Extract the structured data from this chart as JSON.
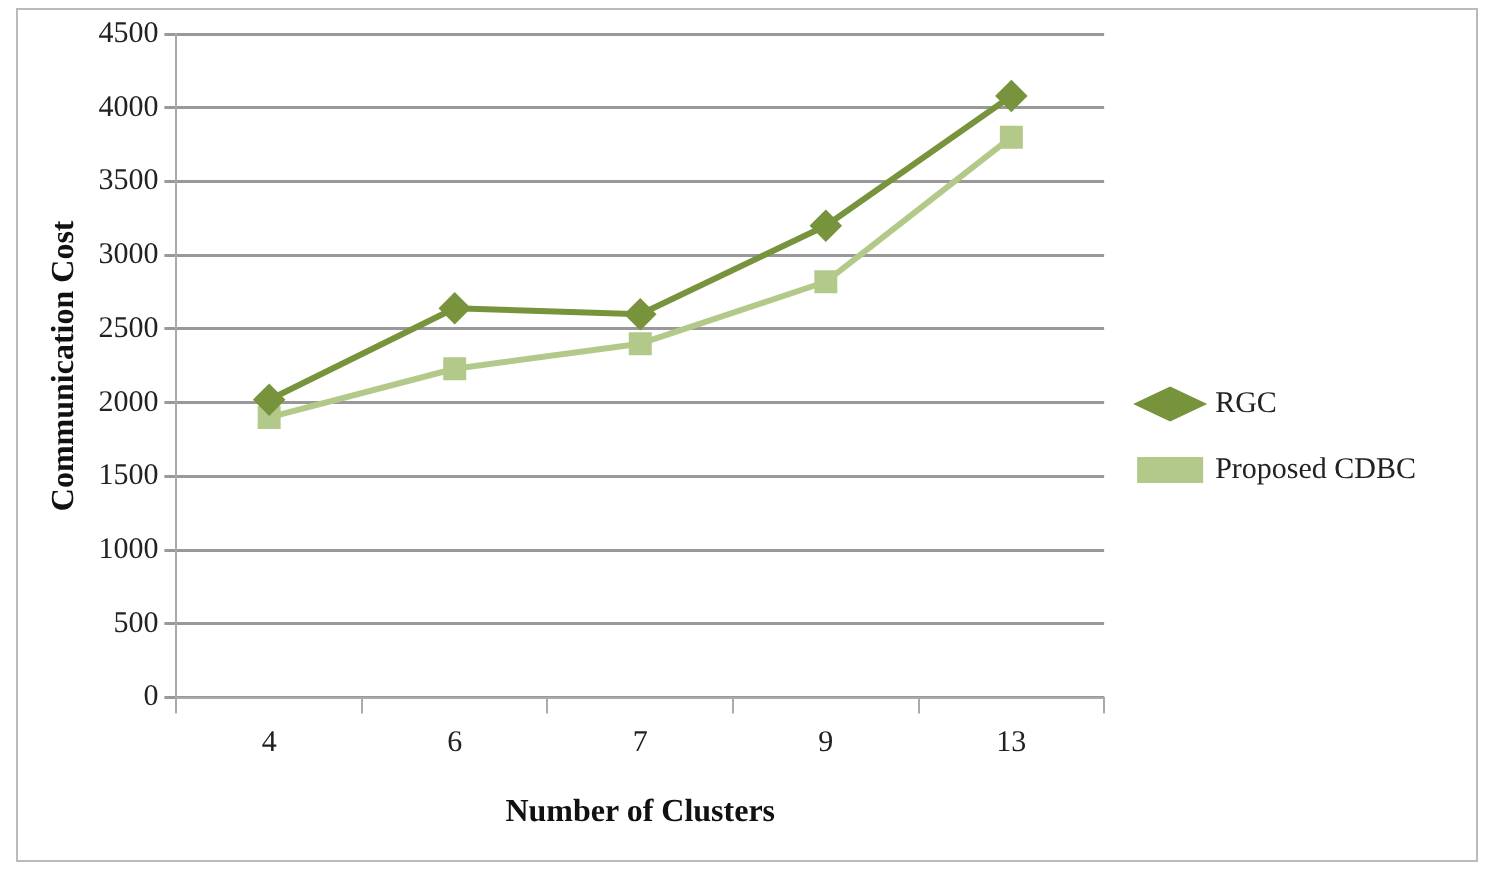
{
  "chart_data": {
    "type": "line",
    "xlabel": "Number of Clusters",
    "ylabel": "Communication Cost",
    "categories": [
      "4",
      "6",
      "7",
      "9",
      "13"
    ],
    "series": [
      {
        "name": "RGC",
        "color": "#77933c",
        "marker": "diamond",
        "values": [
          2020,
          2640,
          2600,
          3200,
          4080
        ]
      },
      {
        "name": "Proposed CDBC",
        "color": "#b3c98a",
        "marker": "square",
        "values": [
          1900,
          2230,
          2400,
          2820,
          3800
        ]
      }
    ],
    "ylim": [
      0,
      4500
    ],
    "yticks": [
      0,
      500,
      1000,
      1500,
      2000,
      2500,
      3000,
      3500,
      4000,
      4500
    ],
    "grid": "y",
    "legend": "right",
    "line_style": "solid"
  }
}
